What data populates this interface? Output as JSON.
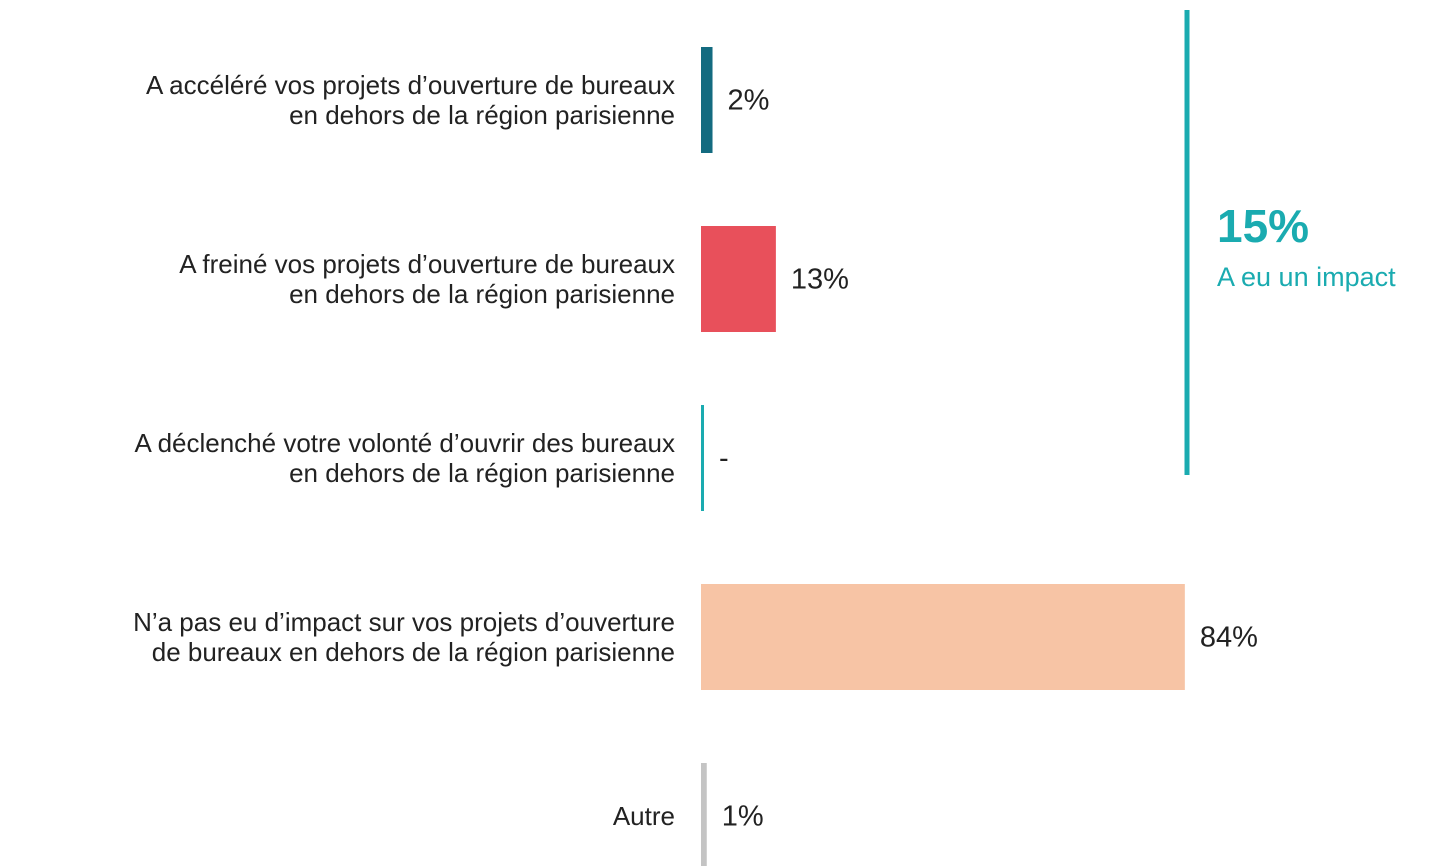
{
  "chart_data": {
    "type": "bar",
    "orientation": "horizontal",
    "categories": [
      [
        "A accéléré vos projets d’ouverture de bureaux",
        "en dehors de la région parisienne"
      ],
      [
        "A freiné vos projets d’ouverture de bureaux",
        "en dehors de la région parisienne"
      ],
      [
        "A déclenché votre volonté d’ouvrir des bureaux",
        "en dehors de la région parisienne"
      ],
      [
        "N’a pas eu d’impact sur vos projets d’ouverture",
        "de bureaux en dehors de la région parisienne"
      ],
      [
        "Autre"
      ]
    ],
    "values": [
      2,
      13,
      0,
      84,
      1
    ],
    "value_labels": [
      "2%",
      "13%",
      "-",
      "84%",
      "1%"
    ],
    "colors": [
      "#136b80",
      "#e8505b",
      "#1aabb0",
      "#f7c4a5",
      "#c4c4c4"
    ],
    "annotation": {
      "value": "15%",
      "text": "A eu un impact",
      "color": "#1aabb0"
    }
  }
}
